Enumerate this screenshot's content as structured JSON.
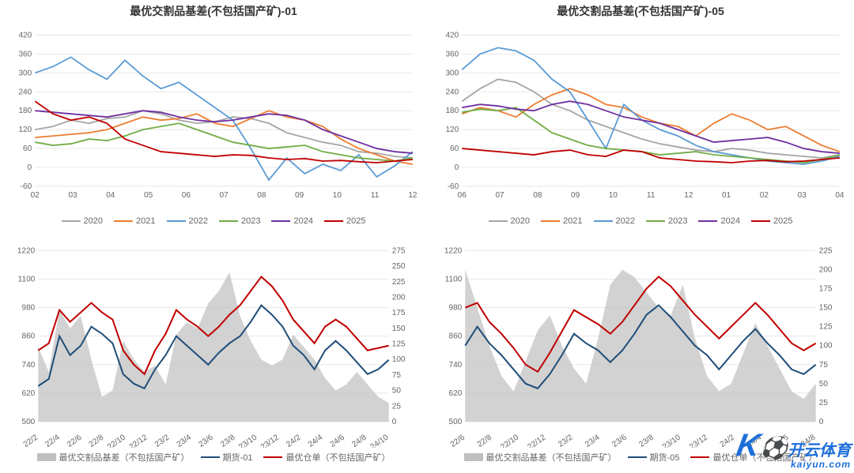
{
  "colors": {
    "2020": "#a6a6a6",
    "2021": "#ed7d31",
    "2022": "#5b9bd5",
    "2023": "#70ad47",
    "2024": "#7030a0",
    "2025": "#c00000",
    "area": "#bfbfbf",
    "line_blue": "#1f4e79",
    "line_red": "#c00000",
    "grid": "#e8e8e8",
    "text": "#666666",
    "bg": "#ffffff"
  },
  "top_left": {
    "type": "line",
    "title": "最优交割品基差(不包括国产矿)-01",
    "ylim": [
      -60,
      420
    ],
    "ytick": 60,
    "xlabels": [
      "02",
      "03",
      "04",
      "05",
      "06",
      "07",
      "08",
      "09",
      "10",
      "11",
      "12"
    ],
    "title_fontsize": 14,
    "label_fontsize": 10,
    "legend": [
      "2020",
      "2021",
      "2022",
      "2023",
      "2024",
      "2025"
    ],
    "series": {
      "2020": [
        120,
        130,
        150,
        140,
        155,
        160,
        180,
        170,
        150,
        140,
        145,
        160,
        155,
        140,
        110,
        95,
        80,
        70,
        50,
        45,
        35,
        30
      ],
      "2021": [
        95,
        100,
        105,
        110,
        120,
        140,
        160,
        150,
        155,
        170,
        140,
        130,
        155,
        180,
        160,
        150,
        130,
        90,
        60,
        40,
        20,
        10
      ],
      "2022": [
        300,
        320,
        350,
        310,
        280,
        340,
        290,
        250,
        270,
        230,
        190,
        150,
        60,
        -40,
        30,
        -20,
        10,
        -10,
        40,
        -30,
        5,
        50
      ],
      "2023": [
        80,
        70,
        75,
        90,
        85,
        100,
        120,
        130,
        140,
        120,
        100,
        80,
        70,
        60,
        65,
        70,
        50,
        40,
        30,
        25,
        20,
        30
      ],
      "2024": [
        180,
        175,
        170,
        165,
        160,
        170,
        180,
        175,
        160,
        150,
        145,
        150,
        160,
        170,
        165,
        150,
        120,
        100,
        80,
        60,
        50,
        45
      ],
      "2025": [
        210,
        170,
        150,
        160,
        140,
        90,
        70,
        50,
        45,
        40,
        35,
        40,
        38,
        30,
        25,
        28,
        20,
        22,
        18,
        15,
        20,
        25
      ]
    }
  },
  "top_right": {
    "type": "line",
    "title": "最优交割品基差(不包括国产矿)-05",
    "ylim": [
      -60,
      420
    ],
    "ytick": 60,
    "xlabels": [
      "06",
      "07",
      "08",
      "09",
      "10",
      "11",
      "12",
      "01",
      "02",
      "03",
      "04"
    ],
    "title_fontsize": 14,
    "label_fontsize": 10,
    "legend": [
      "2020",
      "2021",
      "2022",
      "2023",
      "2024",
      "2025"
    ],
    "series": {
      "2020": [
        210,
        250,
        280,
        270,
        240,
        200,
        180,
        150,
        130,
        110,
        90,
        75,
        65,
        55,
        50,
        60,
        55,
        45,
        40,
        35,
        30,
        40
      ],
      "2021": [
        170,
        190,
        180,
        160,
        200,
        230,
        250,
        230,
        200,
        190,
        160,
        140,
        130,
        100,
        140,
        170,
        150,
        120,
        130,
        100,
        70,
        50
      ],
      "2022": [
        310,
        360,
        380,
        370,
        340,
        280,
        240,
        150,
        60,
        200,
        150,
        120,
        100,
        70,
        50,
        40,
        30,
        20,
        15,
        10,
        20,
        35
      ],
      "2023": [
        175,
        185,
        180,
        190,
        150,
        110,
        90,
        70,
        60,
        55,
        50,
        40,
        45,
        50,
        40,
        35,
        30,
        25,
        20,
        15,
        25,
        40
      ],
      "2024": [
        190,
        200,
        195,
        185,
        180,
        200,
        210,
        200,
        180,
        160,
        150,
        140,
        120,
        100,
        80,
        85,
        90,
        95,
        80,
        60,
        50,
        45
      ],
      "2025": [
        60,
        55,
        50,
        45,
        40,
        50,
        55,
        40,
        35,
        55,
        50,
        30,
        25,
        20,
        18,
        15,
        20,
        22,
        18,
        20,
        25,
        30
      ]
    }
  },
  "bottom_left": {
    "type": "area_line",
    "title": "",
    "y1lim": [
      500,
      1220
    ],
    "y1tick": 120,
    "y2lim": [
      0,
      275
    ],
    "y2tick": 25,
    "xlabels": [
      "22/2",
      "22/4",
      "22/6",
      "22/8",
      "22/10",
      "22/12",
      "23/2",
      "23/4",
      "23/6",
      "23/8",
      "23/10",
      "23/12",
      "24/2",
      "24/4",
      "24/6",
      "24/8",
      "24/10"
    ],
    "legend_area": "最优交割品基差（不包括国产矿）",
    "legend_blue": "期货-01",
    "legend_red": "最优仓单（不包括国产矿）",
    "area_y2": [
      120,
      80,
      180,
      150,
      170,
      100,
      40,
      50,
      130,
      100,
      80,
      90,
      60,
      140,
      160,
      150,
      190,
      210,
      240,
      170,
      130,
      100,
      90,
      100,
      140,
      120,
      100,
      70,
      50,
      60,
      80,
      60,
      40,
      30
    ],
    "line_blue_y1": [
      650,
      680,
      860,
      780,
      820,
      900,
      870,
      830,
      700,
      660,
      640,
      720,
      780,
      860,
      820,
      780,
      740,
      790,
      830,
      860,
      920,
      990,
      950,
      900,
      820,
      780,
      720,
      800,
      840,
      800,
      750,
      700,
      720,
      760
    ],
    "line_red_y1": [
      800,
      830,
      970,
      920,
      960,
      1000,
      960,
      930,
      800,
      740,
      700,
      800,
      870,
      970,
      930,
      900,
      860,
      900,
      950,
      990,
      1050,
      1110,
      1070,
      1010,
      930,
      880,
      830,
      900,
      930,
      900,
      850,
      800,
      810,
      820
    ]
  },
  "bottom_right": {
    "type": "area_line",
    "title": "",
    "y1lim": [
      500,
      1220
    ],
    "y1tick": 120,
    "y2lim": [
      0,
      225
    ],
    "y2tick": 25,
    "xlabels": [
      "22/6",
      "22/8",
      "22/10",
      "22/12",
      "23/2",
      "23/4",
      "23/6",
      "23/8",
      "23/10",
      "23/12",
      "24/2",
      "24/4",
      "24/6",
      "24/8"
    ],
    "legend_area": "最优交割品基差（不包括国产矿）",
    "legend_blue": "期货-05",
    "legend_red": "最优仓单（不包括国产矿）",
    "area_y2": [
      200,
      150,
      100,
      60,
      40,
      80,
      120,
      140,
      100,
      70,
      50,
      110,
      180,
      200,
      190,
      170,
      150,
      140,
      180,
      110,
      60,
      40,
      50,
      90,
      130,
      100,
      70,
      40,
      30,
      50
    ],
    "line_blue_y1": [
      820,
      900,
      830,
      780,
      720,
      660,
      640,
      700,
      780,
      870,
      830,
      800,
      750,
      800,
      870,
      950,
      990,
      940,
      880,
      820,
      780,
      720,
      780,
      840,
      890,
      830,
      780,
      720,
      700,
      740
    ],
    "line_red_y1": [
      980,
      1000,
      920,
      870,
      810,
      740,
      710,
      790,
      880,
      970,
      940,
      910,
      870,
      920,
      990,
      1060,
      1110,
      1070,
      1010,
      950,
      900,
      850,
      900,
      950,
      1000,
      950,
      890,
      830,
      800,
      830
    ]
  },
  "watermark": {
    "brand": "开云体育",
    "domain": "kaiyun.com"
  }
}
